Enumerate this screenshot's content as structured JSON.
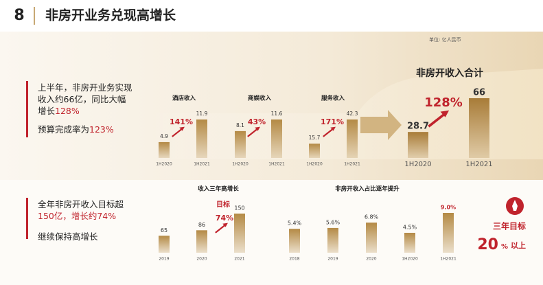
{
  "header": {
    "number": "8",
    "title": "非房开业务兑现高增长"
  },
  "unit": "单位: 亿人民币",
  "notes": [
    [
      {
        "text": "上半年，非房开业务实现收入约66亿，同比大幅增长"
      },
      {
        "text": "128%",
        "em": true
      }
    ],
    [
      {
        "text": "预算完成率为"
      },
      {
        "text": "123%",
        "em": true
      }
    ],
    [
      {
        "text": "全年非房开收入目标超"
      },
      {
        "text": "150亿，增长约74%",
        "em": true
      }
    ],
    [
      {
        "text": "继续保持高增长"
      }
    ]
  ],
  "chart_data": [
    {
      "type": "bar",
      "title": "酒店收入",
      "categories": [
        "1H2020",
        "1H2021"
      ],
      "values": [
        4.9,
        11.9
      ],
      "growth": "141%",
      "color": "#b48a45"
    },
    {
      "type": "bar",
      "title": "商娱收入",
      "categories": [
        "1H2020",
        "1H2021"
      ],
      "values": [
        8.1,
        11.6
      ],
      "growth": "43%",
      "color": "#b48a45"
    },
    {
      "type": "bar",
      "title": "服务收入",
      "categories": [
        "1H2020",
        "1H2021"
      ],
      "values": [
        15.7,
        42.3
      ],
      "growth": "171%",
      "color": "#b48a45"
    },
    {
      "type": "bar",
      "title": "非房开收入合计",
      "categories": [
        "1H2020",
        "1H2021"
      ],
      "values": [
        28.7,
        66
      ],
      "growth": "128%",
      "color": "#a87c38"
    },
    {
      "type": "bar",
      "title": "收入三年高增长",
      "categories": [
        "2019",
        "2020",
        "2021"
      ],
      "values": [
        65,
        86,
        150
      ],
      "growth": "74%",
      "note": "目标",
      "color": "#b48a45"
    },
    {
      "type": "bar",
      "title": "非房开收入占比逐年提升",
      "categories": [
        "2018",
        "2019",
        "2020",
        "1H2020",
        "1H2021"
      ],
      "values": [
        5.4,
        5.6,
        6.8,
        4.5,
        9.0
      ],
      "value_labels": [
        "5.4%",
        "5.6%",
        "6.8%",
        "4.5%",
        "9.0%"
      ],
      "color": "#b48a45"
    }
  ],
  "target": {
    "label": "三年目标",
    "value": 20,
    "unit": "%",
    "suffix": "以上"
  },
  "accent": "#c0232c"
}
